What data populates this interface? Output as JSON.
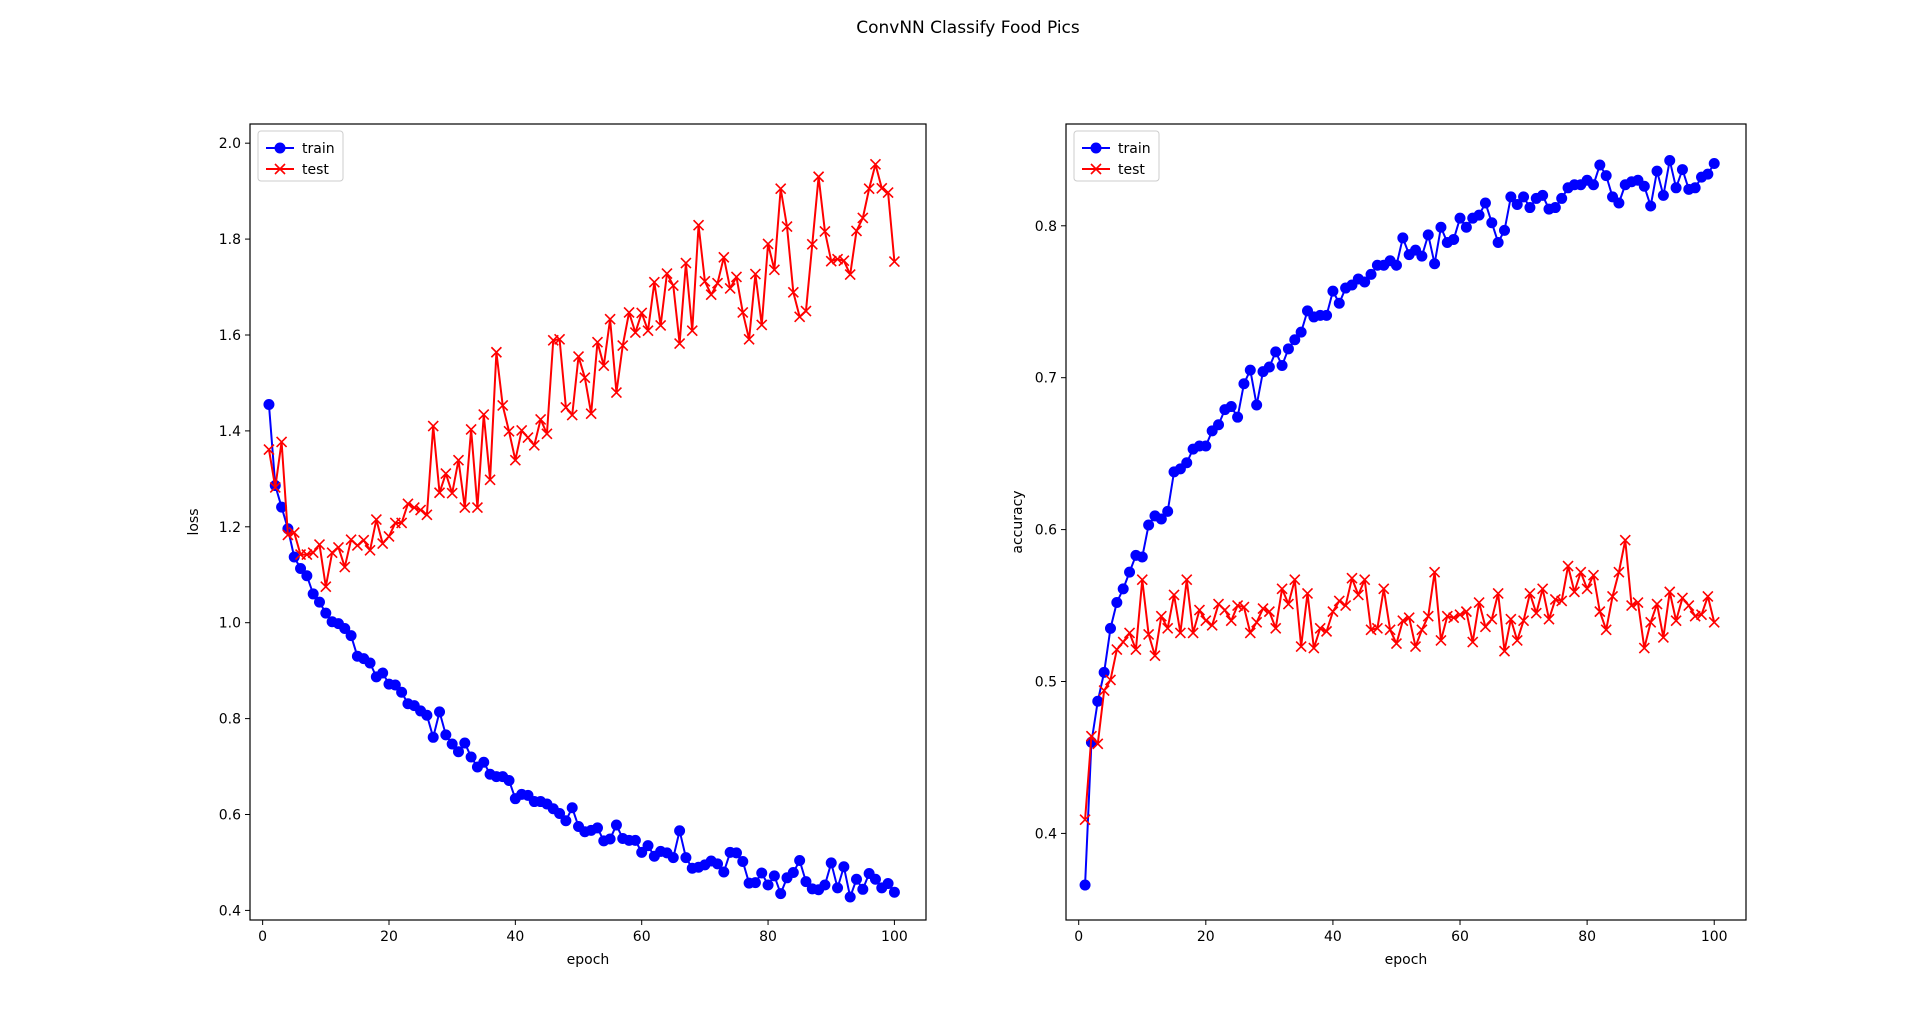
{
  "figure": {
    "title": "ConvNN Classify Food Pics"
  },
  "colors": {
    "train": "#0000ff",
    "test": "#ff0000",
    "axes": "#000000",
    "background": "#ffffff"
  },
  "chart_data": [
    {
      "type": "line",
      "title": "",
      "xlabel": "epoch",
      "ylabel": "loss",
      "xlim": [
        -2,
        105
      ],
      "ylim": [
        0.38,
        2.04
      ],
      "xticks": [
        0,
        20,
        40,
        60,
        80,
        100
      ],
      "yticks": [
        0.4,
        0.6,
        0.8,
        1.0,
        1.2,
        1.4,
        1.6,
        1.8,
        2.0
      ],
      "ytick_decimals": 1,
      "grid": false,
      "legend": "upper left",
      "x": [
        1,
        2,
        3,
        4,
        5,
        6,
        7,
        8,
        9,
        10,
        11,
        12,
        13,
        14,
        15,
        16,
        17,
        18,
        19,
        20,
        21,
        22,
        23,
        24,
        25,
        26,
        27,
        28,
        29,
        30,
        31,
        32,
        33,
        34,
        35,
        36,
        37,
        38,
        39,
        40,
        41,
        42,
        43,
        44,
        45,
        46,
        47,
        48,
        49,
        50,
        51,
        52,
        53,
        54,
        55,
        56,
        57,
        58,
        59,
        60,
        61,
        62,
        63,
        64,
        65,
        66,
        67,
        68,
        69,
        70,
        71,
        72,
        73,
        74,
        75,
        76,
        77,
        78,
        79,
        80,
        81,
        82,
        83,
        84,
        85,
        86,
        87,
        88,
        89,
        90,
        91,
        92,
        93,
        94,
        95,
        96,
        97,
        98,
        99,
        100
      ],
      "series": [
        {
          "name": "train",
          "color": "#0000ff",
          "marker": "circle",
          "values": [
            1.455,
            1.286,
            1.241,
            1.196,
            1.137,
            1.113,
            1.098,
            1.06,
            1.043,
            1.02,
            1.002,
            0.998,
            0.988,
            0.973,
            0.93,
            0.925,
            0.916,
            0.887,
            0.895,
            0.872,
            0.87,
            0.855,
            0.831,
            0.827,
            0.816,
            0.807,
            0.761,
            0.814,
            0.766,
            0.747,
            0.731,
            0.749,
            0.72,
            0.699,
            0.709,
            0.684,
            0.679,
            0.679,
            0.671,
            0.633,
            0.642,
            0.64,
            0.627,
            0.627,
            0.622,
            0.612,
            0.602,
            0.587,
            0.614,
            0.575,
            0.564,
            0.567,
            0.572,
            0.545,
            0.549,
            0.578,
            0.55,
            0.546,
            0.546,
            0.521,
            0.535,
            0.513,
            0.523,
            0.52,
            0.51,
            0.566,
            0.51,
            0.488,
            0.49,
            0.495,
            0.503,
            0.497,
            0.48,
            0.521,
            0.52,
            0.502,
            0.457,
            0.458,
            0.478,
            0.453,
            0.472,
            0.435,
            0.468,
            0.479,
            0.504,
            0.46,
            0.445,
            0.443,
            0.453,
            0.499,
            0.447,
            0.491,
            0.428,
            0.465,
            0.444,
            0.477,
            0.465,
            0.447,
            0.456,
            0.438
          ]
        },
        {
          "name": "test",
          "color": "#ff0000",
          "marker": "x",
          "values": [
            1.361,
            1.282,
            1.377,
            1.183,
            1.188,
            1.142,
            1.142,
            1.146,
            1.163,
            1.075,
            1.146,
            1.157,
            1.116,
            1.173,
            1.161,
            1.172,
            1.151,
            1.215,
            1.165,
            1.18,
            1.208,
            1.208,
            1.248,
            1.24,
            1.235,
            1.225,
            1.41,
            1.271,
            1.311,
            1.27,
            1.339,
            1.24,
            1.403,
            1.24,
            1.434,
            1.298,
            1.564,
            1.453,
            1.399,
            1.339,
            1.401,
            1.386,
            1.37,
            1.424,
            1.394,
            1.589,
            1.591,
            1.449,
            1.433,
            1.555,
            1.511,
            1.436,
            1.585,
            1.536,
            1.633,
            1.48,
            1.578,
            1.647,
            1.605,
            1.646,
            1.609,
            1.71,
            1.62,
            1.728,
            1.703,
            1.582,
            1.75,
            1.609,
            1.829,
            1.712,
            1.684,
            1.708,
            1.762,
            1.697,
            1.721,
            1.647,
            1.591,
            1.727,
            1.621,
            1.79,
            1.736,
            1.905,
            1.826,
            1.689,
            1.638,
            1.65,
            1.789,
            1.93,
            1.816,
            1.754,
            1.758,
            1.755,
            1.726,
            1.817,
            1.844,
            1.905,
            1.956,
            1.906,
            1.897,
            1.753
          ]
        }
      ]
    },
    {
      "type": "line",
      "title": "",
      "xlabel": "epoch",
      "ylabel": "accuracy",
      "xlim": [
        -2,
        105
      ],
      "ylim": [
        0.343,
        0.867
      ],
      "xticks": [
        0,
        20,
        40,
        60,
        80,
        100
      ],
      "yticks": [
        0.4,
        0.5,
        0.6,
        0.7,
        0.8
      ],
      "ytick_decimals": 1,
      "grid": false,
      "legend": "upper left",
      "x": [
        1,
        2,
        3,
        4,
        5,
        6,
        7,
        8,
        9,
        10,
        11,
        12,
        13,
        14,
        15,
        16,
        17,
        18,
        19,
        20,
        21,
        22,
        23,
        24,
        25,
        26,
        27,
        28,
        29,
        30,
        31,
        32,
        33,
        34,
        35,
        36,
        37,
        38,
        39,
        40,
        41,
        42,
        43,
        44,
        45,
        46,
        47,
        48,
        49,
        50,
        51,
        52,
        53,
        54,
        55,
        56,
        57,
        58,
        59,
        60,
        61,
        62,
        63,
        64,
        65,
        66,
        67,
        68,
        69,
        70,
        71,
        72,
        73,
        74,
        75,
        76,
        77,
        78,
        79,
        80,
        81,
        82,
        83,
        84,
        85,
        86,
        87,
        88,
        89,
        90,
        91,
        92,
        93,
        94,
        95,
        96,
        97,
        98,
        99,
        100
      ],
      "series": [
        {
          "name": "train",
          "color": "#0000ff",
          "marker": "circle",
          "values": [
            0.366,
            0.46,
            0.487,
            0.506,
            0.535,
            0.552,
            0.561,
            0.572,
            0.583,
            0.582,
            0.603,
            0.609,
            0.607,
            0.612,
            0.638,
            0.64,
            0.644,
            0.653,
            0.655,
            0.655,
            0.665,
            0.669,
            0.679,
            0.681,
            0.674,
            0.696,
            0.705,
            0.682,
            0.704,
            0.707,
            0.717,
            0.708,
            0.719,
            0.725,
            0.73,
            0.744,
            0.74,
            0.741,
            0.741,
            0.757,
            0.749,
            0.759,
            0.761,
            0.765,
            0.763,
            0.768,
            0.774,
            0.774,
            0.777,
            0.774,
            0.792,
            0.781,
            0.784,
            0.78,
            0.794,
            0.775,
            0.799,
            0.789,
            0.791,
            0.805,
            0.799,
            0.805,
            0.807,
            0.815,
            0.802,
            0.789,
            0.797,
            0.819,
            0.814,
            0.819,
            0.812,
            0.818,
            0.82,
            0.811,
            0.812,
            0.818,
            0.825,
            0.827,
            0.827,
            0.83,
            0.827,
            0.84,
            0.833,
            0.819,
            0.815,
            0.827,
            0.829,
            0.83,
            0.826,
            0.813,
            0.836,
            0.82,
            0.843,
            0.825,
            0.837,
            0.824,
            0.825,
            0.832,
            0.834,
            0.841
          ]
        },
        {
          "name": "test",
          "color": "#ff0000",
          "marker": "x",
          "values": [
            0.409,
            0.464,
            0.459,
            0.494,
            0.501,
            0.521,
            0.526,
            0.532,
            0.521,
            0.567,
            0.531,
            0.517,
            0.543,
            0.535,
            0.557,
            0.532,
            0.567,
            0.532,
            0.547,
            0.54,
            0.537,
            0.551,
            0.547,
            0.54,
            0.55,
            0.549,
            0.532,
            0.539,
            0.548,
            0.546,
            0.535,
            0.561,
            0.551,
            0.567,
            0.523,
            0.558,
            0.522,
            0.535,
            0.533,
            0.546,
            0.553,
            0.55,
            0.568,
            0.557,
            0.567,
            0.534,
            0.535,
            0.561,
            0.534,
            0.525,
            0.54,
            0.542,
            0.523,
            0.534,
            0.543,
            0.572,
            0.527,
            0.543,
            0.542,
            0.544,
            0.546,
            0.526,
            0.552,
            0.536,
            0.541,
            0.558,
            0.52,
            0.541,
            0.527,
            0.54,
            0.558,
            0.545,
            0.561,
            0.541,
            0.554,
            0.553,
            0.576,
            0.559,
            0.572,
            0.561,
            0.57,
            0.546,
            0.534,
            0.556,
            0.572,
            0.593,
            0.55,
            0.552,
            0.522,
            0.539,
            0.551,
            0.529,
            0.559,
            0.54,
            0.555,
            0.55,
            0.543,
            0.544,
            0.556,
            0.539
          ]
        }
      ]
    }
  ]
}
